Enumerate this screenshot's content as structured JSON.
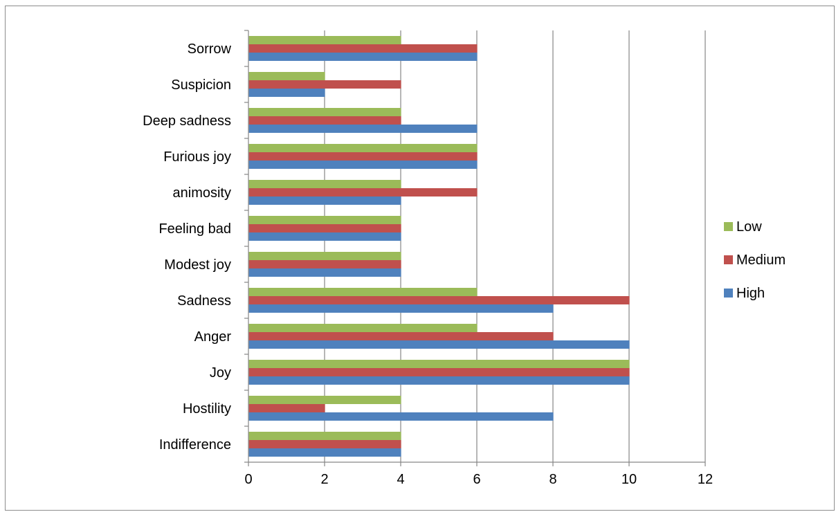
{
  "chart_data": {
    "type": "bar",
    "orientation": "horizontal",
    "title": "",
    "xlabel": "",
    "ylabel": "",
    "categories": [
      "Indifference",
      "Hostility",
      "Joy",
      "Anger",
      "Sadness",
      "Modest joy",
      "Feeling bad",
      "animosity",
      "Furious joy",
      "Deep sadness",
      "Suspicion",
      "Sorrow"
    ],
    "series": [
      {
        "name": "High",
        "color": "#4f81bd",
        "values": [
          4,
          8,
          10,
          10,
          8,
          4,
          4,
          4,
          6,
          6,
          2,
          6
        ]
      },
      {
        "name": "Medium",
        "color": "#c0504d",
        "values": [
          4,
          2,
          10,
          8,
          10,
          4,
          4,
          6,
          6,
          4,
          4,
          6
        ]
      },
      {
        "name": "Low",
        "color": "#9bbb59",
        "values": [
          4,
          4,
          10,
          6,
          6,
          4,
          4,
          4,
          6,
          4,
          2,
          4
        ]
      }
    ],
    "xlim": [
      0,
      12
    ],
    "xticks": [
      "0",
      "2",
      "4",
      "6",
      "8",
      "10",
      "12"
    ],
    "grid": "vertical",
    "legend": "right",
    "legend_order": [
      "Low",
      "Medium",
      "High"
    ]
  }
}
